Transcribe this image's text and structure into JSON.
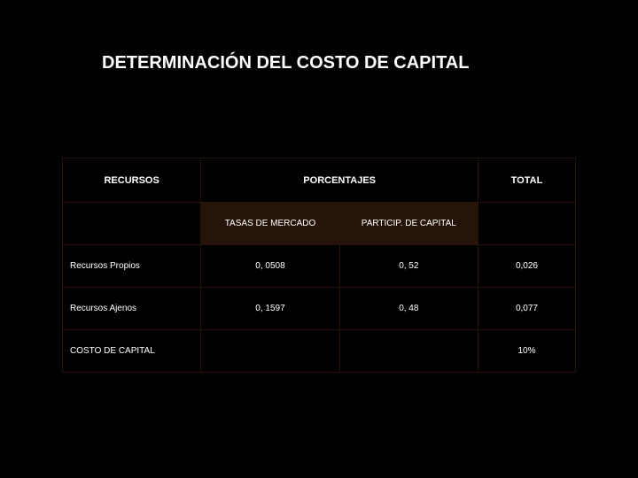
{
  "title": "DETERMINACIÓN DEL COSTO DE CAPITAL",
  "table": {
    "header": {
      "col0": "RECURSOS",
      "col12": "PORCENTAJES",
      "col3": "TOTAL"
    },
    "subheader": {
      "col1": "TASAS DE MERCADO",
      "col2": "PARTICIP. DE CAPITAL"
    },
    "rows": [
      {
        "label": "Recursos Propios",
        "c1": "0, 0508",
        "c2": "0, 52",
        "c3": "0,026"
      },
      {
        "label": "Recursos Ajenos",
        "c1": "0, 1597",
        "c2": "0, 48",
        "c3": "0,077"
      },
      {
        "label": "COSTO DE CAPITAL",
        "c1": "",
        "c2": "",
        "c3": "10%"
      }
    ],
    "colors": {
      "background": "#000000",
      "cell_border": "#26140a",
      "subheader_bg": "#26140a",
      "text": "#ffffff"
    },
    "fonts": {
      "title_pt": 20,
      "header_pt": 11,
      "body_pt": 10
    }
  }
}
